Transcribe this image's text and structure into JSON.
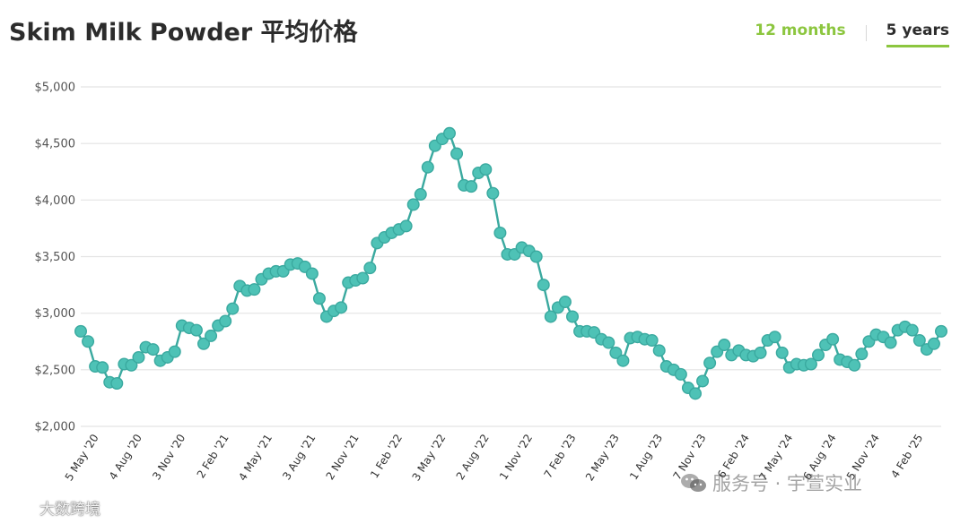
{
  "header": {
    "title": "Skim Milk Powder 平均价格"
  },
  "tabs": [
    {
      "label": "12 months",
      "active": false,
      "color": "#8cc63f"
    },
    {
      "label": "5 years",
      "active": true,
      "color": "#2c2c2c"
    }
  ],
  "colors": {
    "series": "#3aa99f",
    "marker_fill": "#4ec2b6",
    "grid": "#e4e4e4",
    "accent": "#8cc63f"
  },
  "watermarks": {
    "right": "服务号 · 宇萱实业",
    "left": "大数跨境"
  },
  "chart_data": {
    "type": "line",
    "title": "",
    "xlabel": "",
    "ylabel": "",
    "ylim": [
      2000,
      5000
    ],
    "grid": true,
    "y_ticks": [
      "$5,000",
      "$4,500",
      "$4,000",
      "$3,500",
      "$3,000",
      "$2,500",
      "$2,000"
    ],
    "y_tick_values": [
      5000,
      4500,
      4000,
      3500,
      3000,
      2500,
      2000
    ],
    "x_tick_labels": [
      "5 May '20",
      "4 Aug '20",
      "3 Nov '20",
      "2 Feb '21",
      "4 May '21",
      "3 Aug '21",
      "2 Nov '21",
      "1 Feb '22",
      "3 May '22",
      "2 Aug '22",
      "1 Nov '22",
      "7 Feb '23",
      "2 May '23",
      "1 Aug '23",
      "7 Nov '23",
      "6 Feb '24",
      "7 May '24",
      "6 Aug '24",
      "5 Nov '24",
      "4 Feb '25"
    ],
    "x_tick_index": [
      2,
      8,
      14,
      20,
      26,
      32,
      38,
      44,
      50,
      56,
      62,
      68,
      74,
      80,
      86,
      92,
      98,
      104,
      110,
      116
    ],
    "series": [
      {
        "values": [
          2840,
          2750,
          2530,
          2520,
          2390,
          2380,
          2550,
          2540,
          2610,
          2700,
          2680,
          2580,
          2610,
          2660,
          2890,
          2870,
          2850,
          2730,
          2800,
          2890,
          2930,
          3040,
          3240,
          3200,
          3210,
          3300,
          3350,
          3370,
          3370,
          3430,
          3440,
          3410,
          3350,
          3130,
          2970,
          3020,
          3050,
          3270,
          3290,
          3310,
          3400,
          3620,
          3670,
          3710,
          3740,
          3770,
          3960,
          4050,
          4290,
          4480,
          4540,
          4590,
          4410,
          4130,
          4120,
          4240,
          4270,
          4060,
          3710,
          3520,
          3520,
          3580,
          3550,
          3500,
          3250,
          2970,
          3050,
          3100,
          2970,
          2840,
          2840,
          2830,
          2770,
          2740,
          2650,
          2580,
          2780,
          2790,
          2770,
          2760,
          2670,
          2530,
          2500,
          2460,
          2340,
          2290,
          2400,
          2560,
          2660,
          2720,
          2630,
          2670,
          2630,
          2620,
          2650,
          2760,
          2790,
          2650,
          2520,
          2550,
          2540,
          2550,
          2630,
          2720,
          2770,
          2590,
          2570,
          2540,
          2640,
          2750,
          2810,
          2790,
          2740,
          2850,
          2880,
          2850,
          2760,
          2680,
          2730,
          2840
        ]
      }
    ]
  }
}
